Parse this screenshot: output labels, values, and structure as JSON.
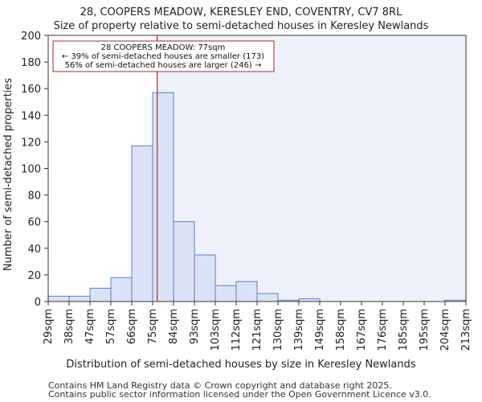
{
  "chart_data": {
    "type": "bar",
    "title": "28, COOPERS MEADOW, KERESLEY END, COVENTRY, CV7 8RL",
    "subtitle": "Size of property relative to semi-detached houses in Keresley Newlands",
    "xlabel": "Distribution of semi-detached houses by size in Keresley Newlands",
    "ylabel": "Number of semi-detached properties",
    "x_tick_labels": [
      "29sqm",
      "38sqm",
      "47sqm",
      "57sqm",
      "66sqm",
      "75sqm",
      "84sqm",
      "93sqm",
      "103sqm",
      "112sqm",
      "121sqm",
      "130sqm",
      "139sqm",
      "149sqm",
      "158sqm",
      "167sqm",
      "176sqm",
      "185sqm",
      "195sqm",
      "204sqm",
      "213sqm"
    ],
    "values": [
      4,
      4,
      10,
      18,
      117,
      157,
      60,
      35,
      12,
      15,
      6,
      1,
      2,
      0,
      0,
      0,
      0,
      0,
      0,
      1
    ],
    "ylim": [
      0,
      200
    ],
    "yticks": [
      0,
      20,
      40,
      60,
      80,
      100,
      120,
      140,
      160,
      180,
      200
    ],
    "grid": false,
    "marker_value": 77,
    "marker_bin_fraction": 5.22,
    "annotation": {
      "line1": "28 COOPERS MEADOW: 77sqm",
      "line2": "← 39% of semi-detached houses are smaller (173)",
      "line3": "56% of semi-detached houses are larger (246) →"
    },
    "colors": {
      "bar_fill": "#dae3f5",
      "bar_stroke": "#5b82c1",
      "marker": "#b0272e",
      "highlight_bg": "#eef0fb",
      "axis": "#333333"
    }
  },
  "footer": {
    "line1": "Contains HM Land Registry data © Crown copyright and database right 2025.",
    "line2": "Contains public sector information licensed under the Open Government Licence v3.0."
  }
}
